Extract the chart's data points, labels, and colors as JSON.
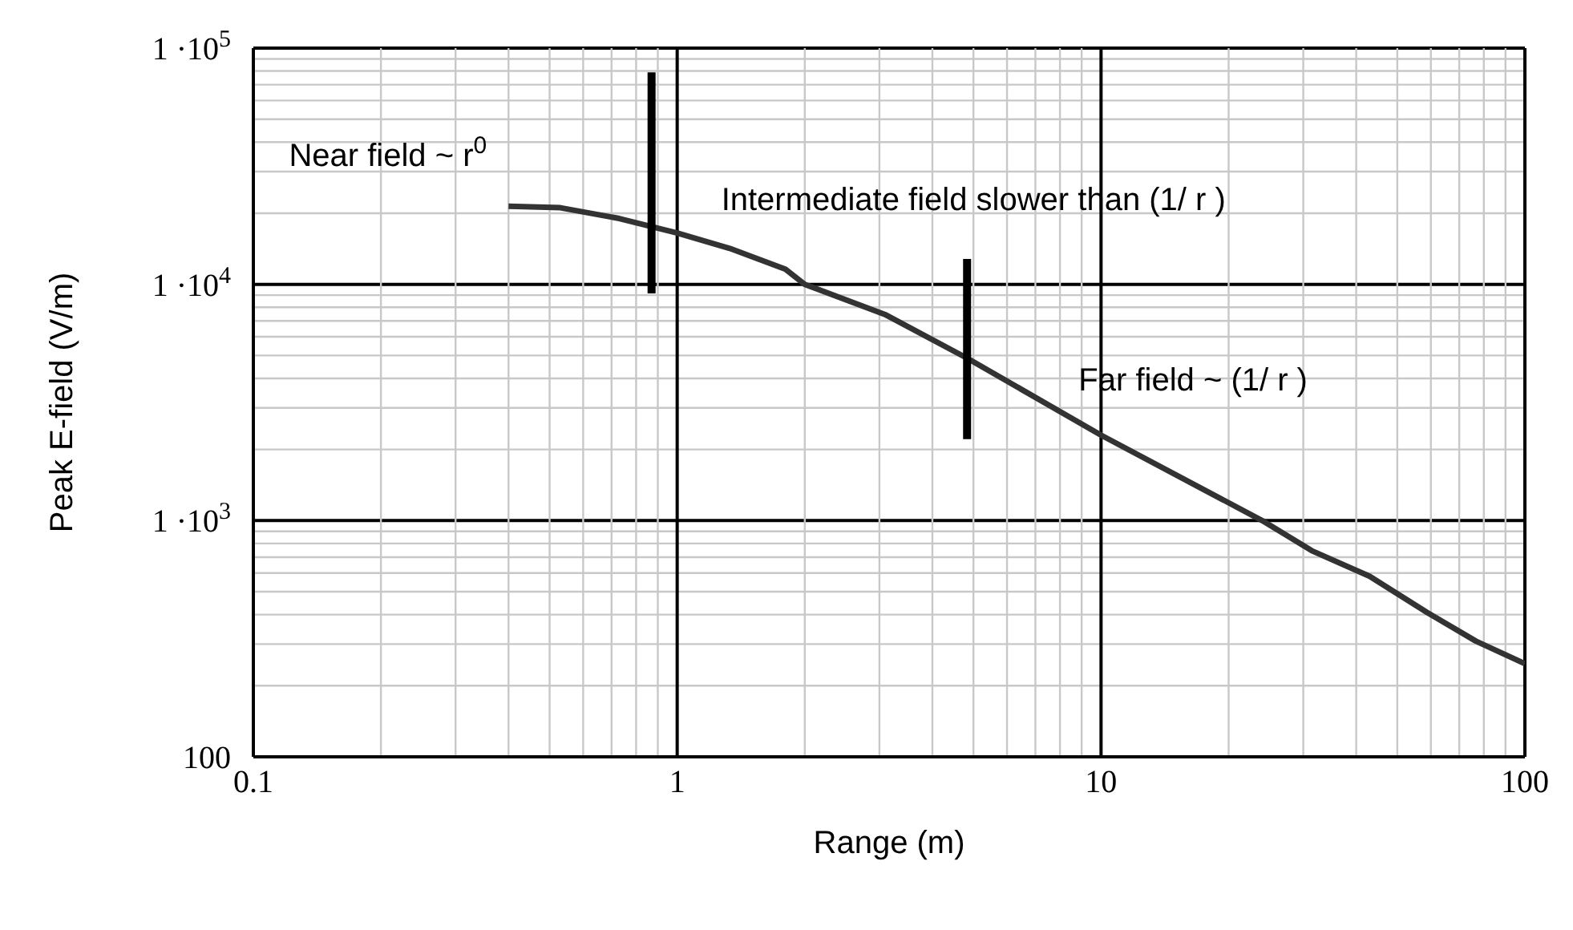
{
  "chart_data": {
    "type": "line",
    "xlabel": "Range (m)",
    "ylabel": "Peak E-field (V/m)",
    "log": "xy",
    "grid": true,
    "legend": false,
    "xlim": [
      0.1,
      100
    ],
    "ylim": [
      100,
      100000
    ],
    "xticks": [
      0.1,
      {
        "value": 0.2,
        "label": null
      },
      {
        "value": 0.3,
        "label": null
      },
      {
        "value": 0.4,
        "label": null
      },
      {
        "value": 0.5,
        "label": null
      },
      {
        "value": 0.6,
        "label": null
      },
      {
        "value": 0.7,
        "label": null
      },
      {
        "value": 0.8,
        "label": null
      },
      {
        "value": 0.9,
        "label": null
      },
      1,
      {
        "value": 2,
        "label": null
      },
      {
        "value": 3,
        "label": null
      },
      {
        "value": 4,
        "label": null
      },
      {
        "value": 5,
        "label": null
      },
      {
        "value": 6,
        "label": null
      },
      {
        "value": 7,
        "label": null
      },
      {
        "value": 8,
        "label": null
      },
      {
        "value": 9,
        "label": null
      },
      10,
      {
        "value": 20,
        "label": null
      },
      {
        "value": 30,
        "label": null
      },
      {
        "value": 40,
        "label": null
      },
      {
        "value": 50,
        "label": null
      },
      {
        "value": 60,
        "label": null
      },
      {
        "value": 70,
        "label": null
      },
      {
        "value": 80,
        "label": null
      },
      {
        "value": 90,
        "label": null
      },
      100
    ],
    "yticks": [
      100,
      {
        "value": 200,
        "label": null
      },
      {
        "value": 300,
        "label": null
      },
      {
        "value": 400,
        "label": null
      },
      {
        "value": 500,
        "label": null
      },
      {
        "value": 600,
        "label": null
      },
      {
        "value": 700,
        "label": null
      },
      {
        "value": 800,
        "label": null
      },
      {
        "value": 900,
        "label": null
      },
      {
        "value": 1000,
        "label": "1 ·10$^{3}$"
      },
      {
        "value": 2000,
        "label": null
      },
      {
        "value": 3000,
        "label": null
      },
      {
        "value": 4000,
        "label": null
      },
      {
        "value": 5000,
        "label": null
      },
      {
        "value": 6000,
        "label": null
      },
      {
        "value": 7000,
        "label": null
      },
      {
        "value": 8000,
        "label": null
      },
      {
        "value": 9000,
        "label": null
      },
      {
        "value": 10000,
        "label": "1 ·10$^{4}$"
      },
      {
        "value": 20000,
        "label": null
      },
      {
        "value": 30000,
        "label": null
      },
      {
        "value": 40000,
        "label": null
      },
      {
        "value": 50000,
        "label": null
      },
      {
        "value": 60000,
        "label": null
      },
      {
        "value": 70000,
        "label": null
      },
      {
        "value": 80000,
        "label": null
      },
      {
        "value": 90000,
        "label": null
      },
      {
        "value": 100000,
        "label": "1 ·10$^{5}$"
      }
    ],
    "series": [
      {
        "color": "#333333",
        "x": [
          0.4,
          0.53,
          0.73,
          1.0,
          1.33,
          1.8,
          2.0,
          3.09,
          4.83,
          10,
          24,
          31.4,
          43,
          58.7,
          76.6,
          100
        ],
        "values": [
          21400,
          21100,
          19000,
          16500,
          14200,
          11600,
          10000,
          7460,
          4870,
          2300,
          1000,
          746,
          581,
          409,
          309,
          248
        ]
      },
      {
        "color": "#000000",
        "x": [
          0.87,
          0.87
        ],
        "values": [
          79000,
          9160
        ]
      },
      {
        "color": "#000000",
        "x": [
          4.83,
          4.83
        ],
        "values": [
          12800,
          2210
        ]
      }
    ],
    "annotations": [
      "Near field ~ r$^{0}$",
      "Intermediate field slower than (1/ r )",
      "Far field ~ (1/ r )"
    ]
  }
}
